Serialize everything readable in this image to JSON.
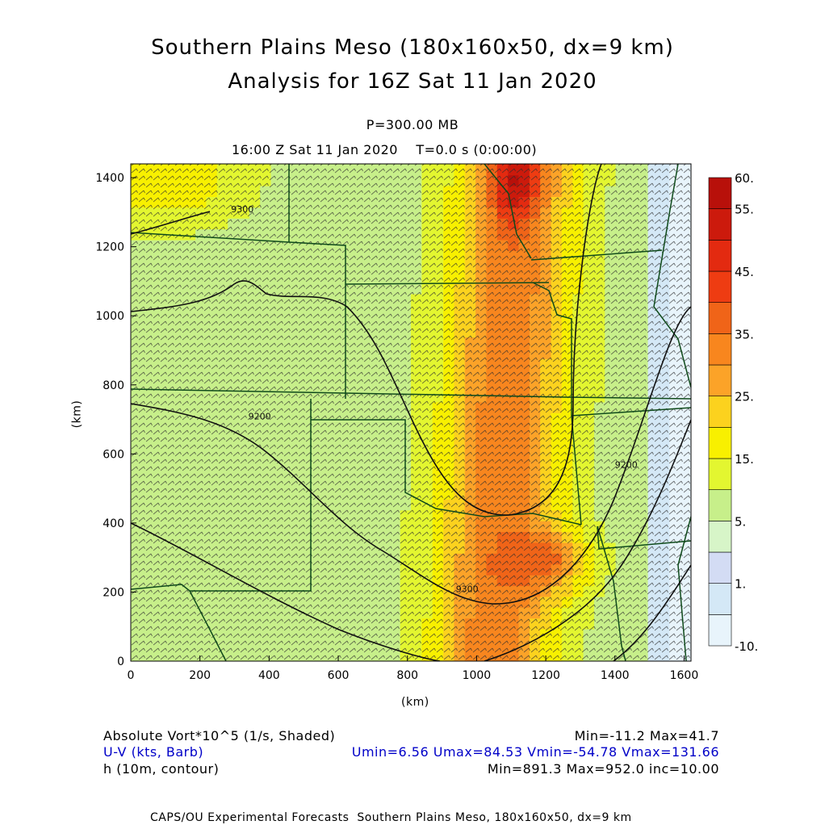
{
  "header": {
    "title_line1": "Southern Plains Meso (180x160x50, dx=9 km)",
    "title_line2": "Analysis for 16Z Sat 11 Jan 2020",
    "level": "P=300.00 MB",
    "time": "16:00 Z Sat 11 Jan 2020    T=0.0 s (0:00:00)"
  },
  "footer": {
    "field1_label": "Absolute Vort*10^5 (1/s, Shaded)",
    "field1_stats": "Min=-11.2 Max=41.7",
    "field2_label": "U-V (kts, Barb)",
    "field2_stats": "Umin=6.56 Umax=84.53 Vmin=-54.78 Vmax=131.66",
    "field3_label": "h (10m, contour)",
    "field3_stats": "Min=891.3 Max=952.0 inc=10.00",
    "credit": "CAPS/OU Experimental Forecasts  Southern Plains Meso, 180x160x50, dx=9 km"
  },
  "chart_data": {
    "type": "heatmap",
    "xlabel": "(km)",
    "ylabel": "(km)",
    "xlim": [
      0,
      1620
    ],
    "ylim": [
      0,
      1440
    ],
    "x_ticks": [
      0,
      200,
      400,
      600,
      800,
      1000,
      1200,
      1400,
      1600
    ],
    "y_ticks": [
      0,
      200,
      400,
      600,
      800,
      1000,
      1200,
      1400
    ],
    "colorbar": {
      "labels": [
        "60.",
        "55.",
        "45.",
        "35.",
        "25.",
        "15.",
        "5.",
        "1.",
        "-10."
      ],
      "levels": [
        -10,
        -5,
        0,
        1,
        5,
        10,
        15,
        20,
        25,
        30,
        35,
        40,
        45,
        50,
        55,
        60
      ],
      "colors": [
        "#e8f4fb",
        "#d4e8f6",
        "#d3dcf4",
        "#d7f5c8",
        "#c7ef8a",
        "#e3f630",
        "#f8f000",
        "#fcd21e",
        "#fca328",
        "#f8861e",
        "#f06418",
        "#ee3c12",
        "#e32a10",
        "#cc1a0c",
        "#b8100a"
      ]
    },
    "vorticity_peaks_km": [
      {
        "x": 1110,
        "y": 1390,
        "value": 41.7
      },
      {
        "x": 1220,
        "y": 290,
        "value": 40
      }
    ],
    "contour_labels": [
      "9300",
      "9200",
      "9300",
      "9200"
    ]
  }
}
